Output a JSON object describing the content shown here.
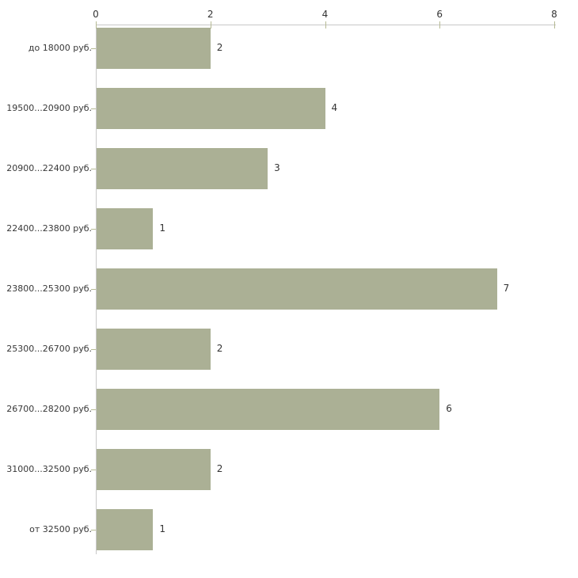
{
  "page": {
    "background": "#ffffff"
  },
  "chart_data": {
    "type": "bar",
    "orientation": "horizontal",
    "title": "",
    "xlabel": "",
    "ylabel": "",
    "axis_position": "top",
    "grid": false,
    "legend": "none",
    "categories": [
      "до 18000 руб.",
      "19500...20900 руб.",
      "20900...22400 руб.",
      "22400...23800 руб.",
      "23800...25300 руб.",
      "25300...26700 руб.",
      "26700...28200 руб.",
      "31000...32500 руб.",
      "от 32500 руб."
    ],
    "values": [
      2,
      4,
      3,
      1,
      7,
      2,
      6,
      2,
      1
    ],
    "x_ticks": [
      0,
      2,
      4,
      6,
      8
    ],
    "xlim": [
      0,
      8
    ],
    "colors": {
      "bar": "#abb095",
      "axis": "#c8c8c8",
      "tick": "#b6ba94",
      "text": "#333333",
      "background": "#ffffff"
    }
  }
}
